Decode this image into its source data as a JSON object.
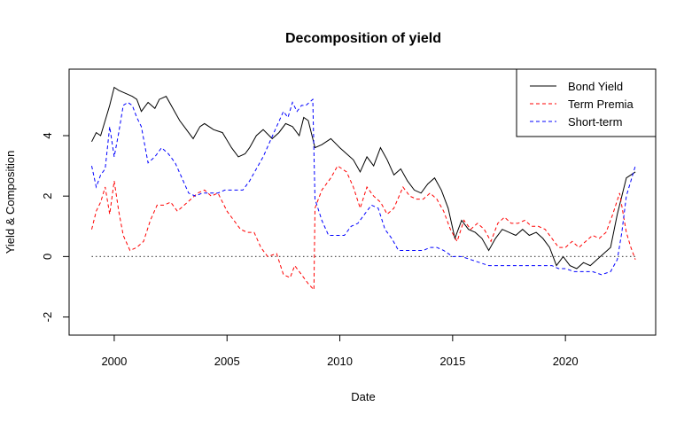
{
  "chart_data": {
    "type": "line",
    "title": "Decomposition of yield",
    "xlabel": "Date",
    "ylabel": "Yield & Composition",
    "xlim": [
      1998,
      2024
    ],
    "ylim": [
      -2.6,
      6.2
    ],
    "x_ticks": [
      2000,
      2005,
      2010,
      2015,
      2020
    ],
    "y_ticks": [
      -2,
      0,
      2,
      4
    ],
    "legend_position": "top-right",
    "reference_line": {
      "y": 0,
      "style": "dotted",
      "color": "#555555"
    },
    "series": [
      {
        "name": "Bond Yield",
        "color": "#000000",
        "dash": "solid",
        "points": [
          [
            1999.0,
            3.8
          ],
          [
            1999.2,
            4.1
          ],
          [
            1999.4,
            4.0
          ],
          [
            1999.6,
            4.5
          ],
          [
            1999.8,
            5.0
          ],
          [
            2000.0,
            5.6
          ],
          [
            2000.2,
            5.5
          ],
          [
            2000.5,
            5.4
          ],
          [
            2000.8,
            5.3
          ],
          [
            2001.0,
            5.2
          ],
          [
            2001.2,
            4.8
          ],
          [
            2001.5,
            5.1
          ],
          [
            2001.8,
            4.9
          ],
          [
            2002.0,
            5.2
          ],
          [
            2002.3,
            5.3
          ],
          [
            2002.6,
            4.9
          ],
          [
            2002.9,
            4.5
          ],
          [
            2003.2,
            4.2
          ],
          [
            2003.5,
            3.9
          ],
          [
            2003.8,
            4.3
          ],
          [
            2004.0,
            4.4
          ],
          [
            2004.4,
            4.2
          ],
          [
            2004.8,
            4.1
          ],
          [
            2005.2,
            3.6
          ],
          [
            2005.5,
            3.3
          ],
          [
            2005.8,
            3.4
          ],
          [
            2006.0,
            3.6
          ],
          [
            2006.3,
            4.0
          ],
          [
            2006.6,
            4.2
          ],
          [
            2007.0,
            3.9
          ],
          [
            2007.3,
            4.1
          ],
          [
            2007.6,
            4.4
          ],
          [
            2007.9,
            4.3
          ],
          [
            2008.2,
            4.0
          ],
          [
            2008.4,
            4.6
          ],
          [
            2008.6,
            4.5
          ],
          [
            2008.9,
            3.6
          ],
          [
            2009.2,
            3.7
          ],
          [
            2009.6,
            3.9
          ],
          [
            2010.0,
            3.6
          ],
          [
            2010.3,
            3.4
          ],
          [
            2010.6,
            3.2
          ],
          [
            2010.9,
            2.8
          ],
          [
            2011.2,
            3.3
          ],
          [
            2011.5,
            3.0
          ],
          [
            2011.8,
            3.6
          ],
          [
            2012.1,
            3.2
          ],
          [
            2012.4,
            2.7
          ],
          [
            2012.7,
            2.9
          ],
          [
            2013.0,
            2.5
          ],
          [
            2013.3,
            2.2
          ],
          [
            2013.6,
            2.1
          ],
          [
            2013.9,
            2.4
          ],
          [
            2014.2,
            2.6
          ],
          [
            2014.5,
            2.2
          ],
          [
            2014.8,
            1.6
          ],
          [
            2015.1,
            0.6
          ],
          [
            2015.4,
            1.2
          ],
          [
            2015.7,
            0.9
          ],
          [
            2016.0,
            0.8
          ],
          [
            2016.3,
            0.6
          ],
          [
            2016.6,
            0.2
          ],
          [
            2016.9,
            0.6
          ],
          [
            2017.2,
            0.9
          ],
          [
            2017.5,
            0.8
          ],
          [
            2017.8,
            0.7
          ],
          [
            2018.1,
            0.9
          ],
          [
            2018.4,
            0.7
          ],
          [
            2018.7,
            0.8
          ],
          [
            2019.0,
            0.6
          ],
          [
            2019.3,
            0.3
          ],
          [
            2019.6,
            -0.3
          ],
          [
            2019.9,
            0.0
          ],
          [
            2020.2,
            -0.3
          ],
          [
            2020.5,
            -0.4
          ],
          [
            2020.8,
            -0.2
          ],
          [
            2021.1,
            -0.3
          ],
          [
            2021.4,
            -0.1
          ],
          [
            2021.7,
            0.1
          ],
          [
            2022.0,
            0.3
          ],
          [
            2022.3,
            1.4
          ],
          [
            2022.5,
            2.0
          ],
          [
            2022.7,
            2.6
          ],
          [
            2022.9,
            2.7
          ],
          [
            2023.1,
            2.8
          ]
        ]
      },
      {
        "name": "Term Premia",
        "color": "#ff0000",
        "dash": "dashed",
        "points": [
          [
            1999.0,
            0.9
          ],
          [
            1999.2,
            1.5
          ],
          [
            1999.4,
            1.8
          ],
          [
            1999.6,
            2.3
          ],
          [
            1999.8,
            1.4
          ],
          [
            2000.0,
            2.5
          ],
          [
            2000.2,
            1.5
          ],
          [
            2000.4,
            0.7
          ],
          [
            2000.7,
            0.2
          ],
          [
            2001.0,
            0.3
          ],
          [
            2001.3,
            0.5
          ],
          [
            2001.6,
            1.2
          ],
          [
            2001.9,
            1.7
          ],
          [
            2002.2,
            1.7
          ],
          [
            2002.5,
            1.8
          ],
          [
            2002.8,
            1.5
          ],
          [
            2003.1,
            1.7
          ],
          [
            2003.4,
            1.9
          ],
          [
            2003.7,
            2.1
          ],
          [
            2004.0,
            2.2
          ],
          [
            2004.3,
            2.0
          ],
          [
            2004.6,
            2.1
          ],
          [
            2005.0,
            1.5
          ],
          [
            2005.3,
            1.2
          ],
          [
            2005.6,
            0.9
          ],
          [
            2005.9,
            0.8
          ],
          [
            2006.2,
            0.8
          ],
          [
            2006.5,
            0.3
          ],
          [
            2006.8,
            0.0
          ],
          [
            2007.2,
            0.1
          ],
          [
            2007.5,
            -0.6
          ],
          [
            2007.8,
            -0.7
          ],
          [
            2008.0,
            -0.3
          ],
          [
            2008.3,
            -0.6
          ],
          [
            2008.6,
            -0.9
          ],
          [
            2008.85,
            -1.1
          ],
          [
            2008.9,
            1.6
          ],
          [
            2009.2,
            2.2
          ],
          [
            2009.6,
            2.6
          ],
          [
            2009.9,
            3.0
          ],
          [
            2010.3,
            2.8
          ],
          [
            2010.6,
            2.3
          ],
          [
            2010.9,
            1.6
          ],
          [
            2011.2,
            2.3
          ],
          [
            2011.5,
            2.0
          ],
          [
            2011.8,
            1.8
          ],
          [
            2012.1,
            1.4
          ],
          [
            2012.4,
            1.6
          ],
          [
            2012.8,
            2.3
          ],
          [
            2013.1,
            2.0
          ],
          [
            2013.4,
            1.9
          ],
          [
            2013.7,
            1.9
          ],
          [
            2014.0,
            2.1
          ],
          [
            2014.3,
            1.9
          ],
          [
            2014.6,
            1.5
          ],
          [
            2014.9,
            0.9
          ],
          [
            2015.2,
            0.5
          ],
          [
            2015.5,
            1.2
          ],
          [
            2015.8,
            0.9
          ],
          [
            2016.1,
            1.1
          ],
          [
            2016.4,
            0.9
          ],
          [
            2016.7,
            0.5
          ],
          [
            2017.0,
            1.1
          ],
          [
            2017.3,
            1.3
          ],
          [
            2017.6,
            1.1
          ],
          [
            2017.9,
            1.1
          ],
          [
            2018.2,
            1.2
          ],
          [
            2018.5,
            1.0
          ],
          [
            2018.8,
            1.0
          ],
          [
            2019.1,
            0.9
          ],
          [
            2019.4,
            0.6
          ],
          [
            2019.7,
            0.3
          ],
          [
            2020.0,
            0.3
          ],
          [
            2020.3,
            0.5
          ],
          [
            2020.6,
            0.3
          ],
          [
            2020.9,
            0.5
          ],
          [
            2021.2,
            0.7
          ],
          [
            2021.5,
            0.6
          ],
          [
            2021.8,
            0.8
          ],
          [
            2022.1,
            1.4
          ],
          [
            2022.4,
            2.1
          ],
          [
            2022.7,
            0.8
          ],
          [
            2022.9,
            0.3
          ],
          [
            2023.1,
            -0.1
          ]
        ]
      },
      {
        "name": "Short-term",
        "color": "#0000ff",
        "dash": "dashed",
        "points": [
          [
            1999.0,
            3.0
          ],
          [
            1999.2,
            2.3
          ],
          [
            1999.4,
            2.7
          ],
          [
            1999.6,
            2.9
          ],
          [
            1999.8,
            4.3
          ],
          [
            2000.0,
            3.3
          ],
          [
            2000.2,
            4.1
          ],
          [
            2000.4,
            5.0
          ],
          [
            2000.6,
            5.1
          ],
          [
            2000.8,
            5.0
          ],
          [
            2001.0,
            4.6
          ],
          [
            2001.2,
            4.3
          ],
          [
            2001.5,
            3.1
          ],
          [
            2001.8,
            3.3
          ],
          [
            2002.1,
            3.6
          ],
          [
            2002.4,
            3.4
          ],
          [
            2002.7,
            3.1
          ],
          [
            2003.0,
            2.6
          ],
          [
            2003.3,
            2.1
          ],
          [
            2003.6,
            2.0
          ],
          [
            2003.9,
            2.1
          ],
          [
            2004.2,
            2.1
          ],
          [
            2004.6,
            2.1
          ],
          [
            2004.9,
            2.2
          ],
          [
            2005.3,
            2.2
          ],
          [
            2005.7,
            2.2
          ],
          [
            2006.0,
            2.5
          ],
          [
            2006.3,
            2.9
          ],
          [
            2006.6,
            3.3
          ],
          [
            2006.9,
            3.8
          ],
          [
            2007.2,
            4.3
          ],
          [
            2007.5,
            4.8
          ],
          [
            2007.7,
            4.6
          ],
          [
            2007.9,
            5.1
          ],
          [
            2008.1,
            4.8
          ],
          [
            2008.3,
            5.0
          ],
          [
            2008.5,
            5.0
          ],
          [
            2008.8,
            5.2
          ],
          [
            2008.9,
            1.9
          ],
          [
            2009.2,
            1.2
          ],
          [
            2009.5,
            0.7
          ],
          [
            2009.8,
            0.7
          ],
          [
            2010.2,
            0.7
          ],
          [
            2010.5,
            1.0
          ],
          [
            2010.8,
            1.1
          ],
          [
            2011.1,
            1.4
          ],
          [
            2011.4,
            1.7
          ],
          [
            2011.7,
            1.6
          ],
          [
            2012.0,
            0.9
          ],
          [
            2012.3,
            0.6
          ],
          [
            2012.6,
            0.2
          ],
          [
            2012.9,
            0.2
          ],
          [
            2013.3,
            0.2
          ],
          [
            2013.7,
            0.2
          ],
          [
            2014.0,
            0.3
          ],
          [
            2014.3,
            0.3
          ],
          [
            2014.6,
            0.2
          ],
          [
            2015.0,
            0.0
          ],
          [
            2015.4,
            0.0
          ],
          [
            2015.8,
            -0.1
          ],
          [
            2016.2,
            -0.2
          ],
          [
            2016.6,
            -0.3
          ],
          [
            2017.0,
            -0.3
          ],
          [
            2017.5,
            -0.3
          ],
          [
            2018.0,
            -0.3
          ],
          [
            2018.5,
            -0.3
          ],
          [
            2019.0,
            -0.3
          ],
          [
            2019.4,
            -0.3
          ],
          [
            2019.7,
            -0.4
          ],
          [
            2020.0,
            -0.4
          ],
          [
            2020.4,
            -0.5
          ],
          [
            2020.8,
            -0.5
          ],
          [
            2021.2,
            -0.5
          ],
          [
            2021.6,
            -0.6
          ],
          [
            2022.0,
            -0.5
          ],
          [
            2022.3,
            -0.1
          ],
          [
            2022.5,
            0.8
          ],
          [
            2022.7,
            2.0
          ],
          [
            2022.9,
            2.5
          ],
          [
            2023.1,
            3.0
          ]
        ]
      }
    ]
  }
}
